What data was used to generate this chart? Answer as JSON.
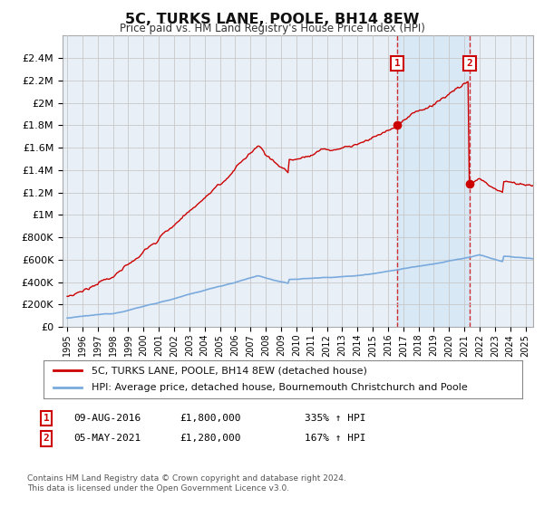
{
  "title": "5C, TURKS LANE, POOLE, BH14 8EW",
  "subtitle": "Price paid vs. HM Land Registry's House Price Index (HPI)",
  "legend_line1": "5C, TURKS LANE, POOLE, BH14 8EW (detached house)",
  "legend_line2": "HPI: Average price, detached house, Bournemouth Christchurch and Poole",
  "ann1_date": "09-AUG-2016",
  "ann1_price": "£1,800,000",
  "ann1_hpi": "335% ↑ HPI",
  "ann2_date": "05-MAY-2021",
  "ann2_price": "£1,280,000",
  "ann2_hpi": "167% ↑ HPI",
  "footer1": "Contains HM Land Registry data © Crown copyright and database right 2024.",
  "footer2": "This data is licensed under the Open Government Licence v3.0.",
  "hpi_color": "#7aaadd",
  "price_color": "#cc0000",
  "shade_color": "#d8e8f5",
  "background_color": "#ffffff",
  "plot_bg_color": "#e8eff7",
  "grid_color": "#c8c8c8",
  "ylim": [
    0,
    2600000
  ],
  "sale1_year": 2016.608,
  "sale1_value": 1800000,
  "sale2_year": 2021.34,
  "sale2_value": 1280000
}
